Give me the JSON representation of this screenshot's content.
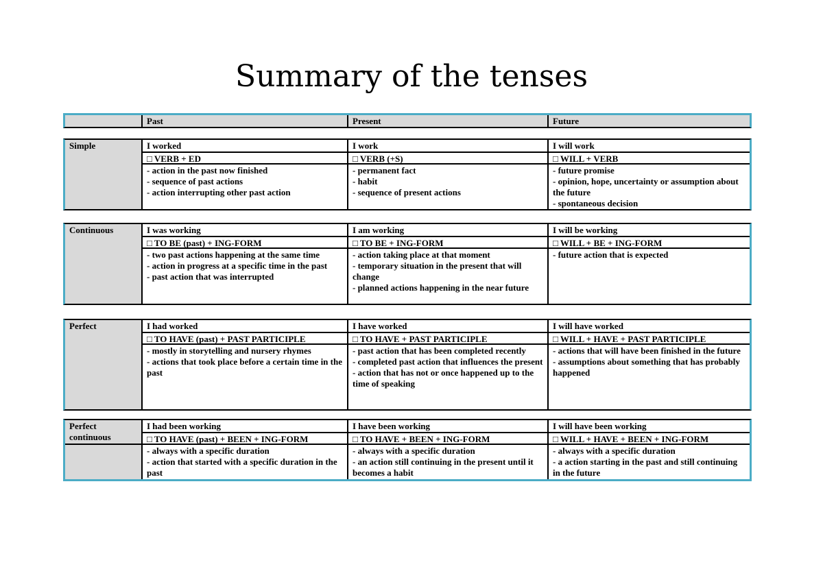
{
  "page": {
    "title": "Summary of the tenses"
  },
  "colors": {
    "border_accent": "#4bacc6",
    "header_fill": "#d9d9d9",
    "grid_line": "#000000"
  },
  "table": {
    "column_headers": [
      "",
      "Past",
      "Present",
      "Future"
    ],
    "rows": [
      {
        "label": "Simple",
        "cells": [
          {
            "example": "I worked",
            "formula": "□ VERB + ED",
            "uses": [
              "- action in the past now finished",
              "- sequence of past actions",
              "- action interrupting other past action"
            ]
          },
          {
            "example": "I work",
            "formula": "□ VERB (+S)",
            "uses": [
              "- permanent fact",
              "- habit",
              "- sequence of present actions"
            ]
          },
          {
            "example": "I will work",
            "formula": "□ WILL + VERB",
            "uses": [
              "- future promise",
              "- opinion, hope, uncertainty or assumption about the future",
              "- spontaneous decision"
            ]
          }
        ]
      },
      {
        "label": "Continuous",
        "cells": [
          {
            "example": "I was working",
            "formula": "□ TO BE (past) + ING-FORM",
            "uses": [
              "- two past actions happening at the same time",
              "- action in progress at a specific time in the past",
              "- past action that was interrupted"
            ]
          },
          {
            "example": "I am working",
            "formula": "□ TO BE + ING-FORM",
            "uses": [
              "- action taking place at that moment",
              "- temporary situation in the present that will change",
              "- planned actions happening in the near future"
            ]
          },
          {
            "example": "I will be working",
            "formula": "□ WILL + BE + ING-FORM",
            "uses": [
              "- future action that is expected"
            ]
          }
        ]
      },
      {
        "label": "Perfect",
        "cells": [
          {
            "example": "I had worked",
            "formula": "□ TO HAVE (past) + PAST PARTICIPLE",
            "uses": [
              "- mostly in storytelling and nursery rhymes",
              "- actions that took place before a certain time in the past"
            ]
          },
          {
            "example": "I have worked",
            "formula": "□ TO HAVE + PAST PARTICIPLE",
            "uses": [
              "- past action that has been completed recently",
              "- completed past action that influences the present",
              "- action that has not or once happened up to the time of speaking"
            ]
          },
          {
            "example": "I will have worked",
            "formula": "□ WILL + HAVE + PAST PARTICIPLE",
            "uses": [
              "- actions that will have been finished in the future",
              "- assumptions about something that has probably happened"
            ]
          }
        ]
      },
      {
        "label": "Perfect continuous",
        "cells": [
          {
            "example": "I had been working",
            "formula": "□ TO HAVE (past) + BEEN + ING-FORM",
            "uses": [
              "- always with a specific duration",
              "- action that started with a specific duration in the past"
            ]
          },
          {
            "example": "I have been working",
            "formula": "□ TO HAVE + BEEN + ING-FORM",
            "uses": [
              "- always with a specific duration",
              "- an action still continuing in the present until it becomes a habit"
            ]
          },
          {
            "example": "I will have been working",
            "formula": "□ WILL + HAVE + BEEN + ING-FORM",
            "uses": [
              "- always with a specific duration",
              "- a action starting in the past and still continuing in the future"
            ]
          }
        ]
      }
    ]
  }
}
